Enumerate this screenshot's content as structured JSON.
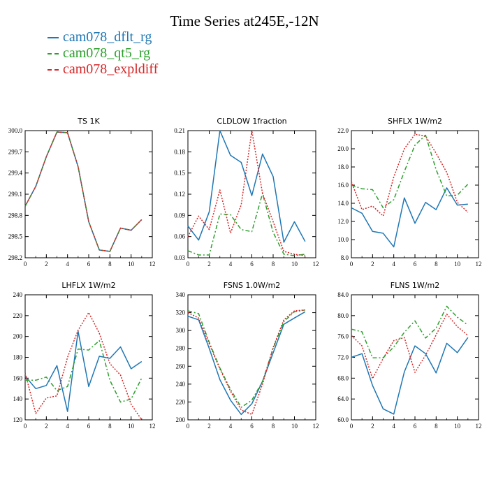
{
  "title": "Time Series at245E,-12N",
  "legend": [
    {
      "name": "cam078_dflt_rg",
      "color": "#1f77b4",
      "dash": ""
    },
    {
      "name": "cam078_qt5_rg",
      "color": "#2ca02c",
      "dash": "6,3,2,3"
    },
    {
      "name": "cam078_expldiff",
      "color": "#d62728",
      "dash": "2,2"
    }
  ],
  "chart_data": [
    {
      "type": "line",
      "title": "TS   1K",
      "xlim": [
        0,
        12
      ],
      "ylim": [
        298.2,
        300.0
      ],
      "xticks": [
        "0",
        "2",
        "4",
        "6",
        "8",
        "10",
        "12"
      ],
      "yticks": [
        "298.2",
        "298.5",
        "298.8",
        "299.1",
        "299.4",
        "299.7",
        "300.0"
      ],
      "x": [
        0,
        1,
        2,
        3,
        4,
        5,
        6,
        7,
        8,
        9,
        10,
        11
      ],
      "series": [
        {
          "name": "cam078_dflt_rg",
          "values": [
            298.93,
            299.21,
            299.63,
            299.98,
            299.97,
            299.49,
            298.71,
            298.31,
            298.29,
            298.62,
            298.59,
            298.74
          ]
        },
        {
          "name": "cam078_qt5_rg",
          "values": [
            298.93,
            299.21,
            299.63,
            299.98,
            299.97,
            299.49,
            298.71,
            298.31,
            298.29,
            298.62,
            298.59,
            298.74
          ]
        },
        {
          "name": "cam078_expldiff",
          "values": [
            298.93,
            299.21,
            299.63,
            299.98,
            299.97,
            299.49,
            298.71,
            298.31,
            298.29,
            298.62,
            298.59,
            298.74
          ]
        }
      ]
    },
    {
      "type": "line",
      "title": "CLDLOW   1fraction",
      "xlim": [
        0,
        12
      ],
      "ylim": [
        0.03,
        0.21
      ],
      "xticks": [
        "0",
        "2",
        "4",
        "6",
        "8",
        "10",
        "12"
      ],
      "yticks": [
        "0.03",
        "0.06",
        "0.09",
        "0.12",
        "0.15",
        "0.18",
        "0.21"
      ],
      "x": [
        0,
        1,
        2,
        3,
        4,
        5,
        6,
        7,
        8,
        9,
        10,
        11
      ],
      "series": [
        {
          "name": "cam078_dflt_rg",
          "values": [
            0.075,
            0.055,
            0.095,
            0.21,
            0.175,
            0.165,
            0.118,
            0.177,
            0.145,
            0.052,
            0.081,
            0.053
          ]
        },
        {
          "name": "cam078_qt5_rg",
          "values": [
            0.04,
            0.034,
            0.034,
            0.092,
            0.091,
            0.07,
            0.067,
            0.121,
            0.066,
            0.035,
            0.033,
            0.035
          ]
        },
        {
          "name": "cam078_expldiff",
          "values": [
            0.06,
            0.089,
            0.07,
            0.126,
            0.065,
            0.105,
            0.21,
            0.121,
            0.081,
            0.039,
            0.035,
            0.033
          ]
        }
      ]
    },
    {
      "type": "line",
      "title": "SHFLX   1W/m2",
      "xlim": [
        0,
        12
      ],
      "ylim": [
        8.0,
        22.0
      ],
      "xticks": [
        "0",
        "2",
        "4",
        "6",
        "8",
        "10",
        "12"
      ],
      "yticks": [
        "8.0",
        "10.0",
        "12.0",
        "14.0",
        "16.0",
        "18.0",
        "20.0",
        "22.0"
      ],
      "x": [
        0,
        1,
        2,
        3,
        4,
        5,
        6,
        7,
        8,
        9,
        10,
        11
      ],
      "series": [
        {
          "name": "cam078_dflt_rg",
          "values": [
            13.5,
            12.9,
            10.9,
            10.7,
            9.2,
            14.6,
            11.8,
            14.1,
            13.3,
            15.7,
            13.8,
            13.9
          ]
        },
        {
          "name": "cam078_qt5_rg",
          "values": [
            16.0,
            15.6,
            15.5,
            13.5,
            14.4,
            17.5,
            20.4,
            21.5,
            17.7,
            14.8,
            14.9,
            16.1
          ]
        },
        {
          "name": "cam078_expldiff",
          "values": [
            16.4,
            13.3,
            13.7,
            12.6,
            16.9,
            20.0,
            21.6,
            21.4,
            19.5,
            17.4,
            14.1,
            13.0
          ]
        }
      ]
    },
    {
      "type": "line",
      "title": "LHFLX   1W/m2",
      "xlim": [
        0,
        12
      ],
      "ylim": [
        120,
        240
      ],
      "xticks": [
        "0",
        "2",
        "4",
        "6",
        "8",
        "10",
        "12"
      ],
      "yticks": [
        "120",
        "140",
        "160",
        "180",
        "200",
        "220",
        "240"
      ],
      "x": [
        0,
        1,
        2,
        3,
        4,
        5,
        6,
        7,
        8,
        9,
        10,
        11
      ],
      "series": [
        {
          "name": "cam078_dflt_rg",
          "values": [
            162,
            150,
            153,
            172,
            128,
            205,
            152,
            181,
            179,
            190,
            169,
            176
          ]
        },
        {
          "name": "cam078_qt5_rg",
          "values": [
            158,
            158,
            161,
            148,
            152,
            188,
            187,
            196,
            158,
            137,
            140,
            160
          ]
        },
        {
          "name": "cam078_expldiff",
          "values": [
            165,
            126,
            141,
            143,
            180,
            206,
            223,
            203,
            174,
            163,
            135,
            120
          ]
        }
      ]
    },
    {
      "type": "line",
      "title": "FSNS   1.0W/m2",
      "xlim": [
        0,
        12
      ],
      "ylim": [
        200,
        340
      ],
      "xticks": [
        "0",
        "2",
        "4",
        "6",
        "8",
        "10",
        "12"
      ],
      "yticks": [
        "200",
        "220",
        "240",
        "260",
        "280",
        "300",
        "320",
        "340"
      ],
      "x": [
        0,
        1,
        2,
        3,
        4,
        5,
        6,
        7,
        8,
        9,
        10,
        11
      ],
      "series": [
        {
          "name": "cam078_dflt_rg",
          "values": [
            316,
            312,
            280,
            245,
            222,
            206,
            218,
            243,
            275,
            307,
            314,
            321
          ]
        },
        {
          "name": "cam078_qt5_rg",
          "values": [
            322,
            319,
            287,
            258,
            234,
            214,
            222,
            243,
            280,
            310,
            321,
            323
          ]
        },
        {
          "name": "cam078_expldiff",
          "values": [
            320,
            314,
            285,
            257,
            232,
            211,
            206,
            240,
            281,
            312,
            322,
            323
          ]
        }
      ]
    },
    {
      "type": "line",
      "title": "FLNS   1W/m2",
      "xlim": [
        0,
        12
      ],
      "ylim": [
        60.0,
        84.0
      ],
      "xticks": [
        "0",
        "2",
        "4",
        "6",
        "8",
        "10",
        "12"
      ],
      "yticks": [
        "60.0",
        "64.0",
        "68.0",
        "72.0",
        "76.0",
        "80.0",
        "84.0"
      ],
      "x": [
        0,
        1,
        2,
        3,
        4,
        5,
        6,
        7,
        8,
        9,
        10,
        11
      ],
      "series": [
        {
          "name": "cam078_dflt_rg",
          "values": [
            72.0,
            72.7,
            66.6,
            62.1,
            61.1,
            69.2,
            74.2,
            72.7,
            69.0,
            74.7,
            72.9,
            75.8
          ]
        },
        {
          "name": "cam078_qt5_rg",
          "values": [
            77.4,
            76.9,
            71.9,
            71.9,
            74.0,
            76.8,
            79.0,
            75.7,
            77.6,
            81.8,
            79.7,
            78.2
          ]
        },
        {
          "name": "cam078_expldiff",
          "values": [
            76.2,
            74.2,
            67.9,
            71.8,
            75.2,
            75.8,
            69.1,
            72.4,
            76.3,
            80.3,
            77.9,
            76.2
          ]
        }
      ]
    }
  ]
}
